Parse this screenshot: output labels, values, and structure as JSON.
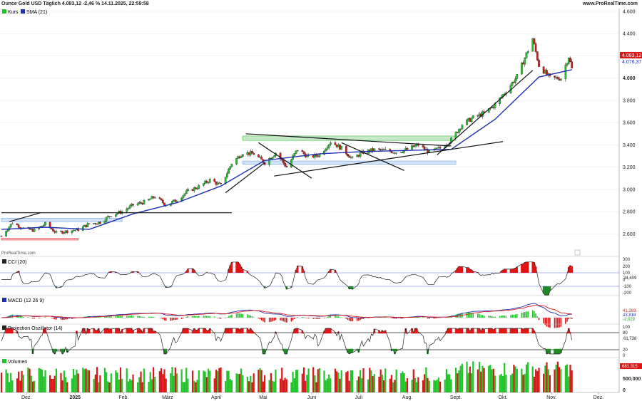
{
  "header": {
    "title": "Ounce Gold USD Täglich 4.083,12 -2,46 % 14.11.2025, 22:59:58",
    "brand": "www.ProRealTime.com"
  },
  "watermark": "ProRealTime.com",
  "colors": {
    "up": "#22c32b",
    "down": "#d81818",
    "sma": "#1f2fb3",
    "cci_fill_pos": "#e01515",
    "cci_fill_neg": "#1f8a25"
  },
  "panels": {
    "price": {
      "legend": [
        "Kurs",
        "SMA (21)"
      ],
      "last_price_label": "4.083,12",
      "sma_label": "4.076,37",
      "bold_tick": "4.000"
    },
    "cci": {
      "legend": "CCI (20)",
      "value_label": "34,409",
      "ticks": [
        "300",
        "200",
        "100",
        "0",
        "-100",
        "-200"
      ]
    },
    "macd": {
      "legend": "MACD (12 26 9)",
      "value_labels": [
        "41,283",
        "43,818",
        "-2,029"
      ]
    },
    "projection": {
      "legend": "Projection Oszillator (14)",
      "value_label": "61,738",
      "ticks": [
        "100",
        "80",
        "20",
        "0"
      ]
    },
    "volume": {
      "legend": "Volumen",
      "value_label": "681.315",
      "ticks": [
        "500.000",
        "0"
      ]
    }
  },
  "chart_data": {
    "type": "candlestick",
    "title": "Ounce Gold USD Täglich",
    "y_ticks": [
      "4.600",
      "4.400",
      "4.200",
      "4.000",
      "3.800",
      "3.600",
      "3.400",
      "3.200",
      "3.000",
      "2.800",
      "2.600"
    ],
    "ylim": [
      2500,
      4600
    ],
    "x_labels": [
      "Dez.",
      "2025",
      "Feb.",
      "März",
      "April",
      "Mai",
      "Juni",
      "Juli",
      "Aug.",
      "Sept.",
      "Okt.",
      "Nov.",
      "Dez."
    ],
    "close_path": [
      {
        "date": "2024-11-15",
        "close": 2580
      },
      {
        "date": "2024-11-22",
        "close": 2700
      },
      {
        "date": "2024-11-29",
        "close": 2650
      },
      {
        "date": "2024-12-06",
        "close": 2630
      },
      {
        "date": "2024-12-13",
        "close": 2690
      },
      {
        "date": "2024-12-20",
        "close": 2610
      },
      {
        "date": "2024-12-27",
        "close": 2625
      },
      {
        "date": "2025-01-03",
        "close": 2640
      },
      {
        "date": "2025-01-10",
        "close": 2690
      },
      {
        "date": "2025-01-17",
        "close": 2705
      },
      {
        "date": "2025-01-24",
        "close": 2770
      },
      {
        "date": "2025-01-31",
        "close": 2800
      },
      {
        "date": "2025-02-07",
        "close": 2860
      },
      {
        "date": "2025-02-14",
        "close": 2885
      },
      {
        "date": "2025-02-21",
        "close": 2935
      },
      {
        "date": "2025-02-28",
        "close": 2860
      },
      {
        "date": "2025-03-07",
        "close": 2905
      },
      {
        "date": "2025-03-14",
        "close": 2985
      },
      {
        "date": "2025-03-21",
        "close": 3025
      },
      {
        "date": "2025-03-28",
        "close": 3085
      },
      {
        "date": "2025-04-04",
        "close": 3035
      },
      {
        "date": "2025-04-11",
        "close": 3235
      },
      {
        "date": "2025-04-18",
        "close": 3330
      },
      {
        "date": "2025-04-25",
        "close": 3320
      },
      {
        "date": "2025-05-02",
        "close": 3240
      },
      {
        "date": "2025-05-09",
        "close": 3330
      },
      {
        "date": "2025-05-16",
        "close": 3200
      },
      {
        "date": "2025-05-23",
        "close": 3360
      },
      {
        "date": "2025-05-30",
        "close": 3290
      },
      {
        "date": "2025-06-06",
        "close": 3310
      },
      {
        "date": "2025-06-13",
        "close": 3430
      },
      {
        "date": "2025-06-20",
        "close": 3370
      },
      {
        "date": "2025-06-27",
        "close": 3275
      },
      {
        "date": "2025-07-04",
        "close": 3335
      },
      {
        "date": "2025-07-11",
        "close": 3355
      },
      {
        "date": "2025-07-18",
        "close": 3350
      },
      {
        "date": "2025-07-25",
        "close": 3335
      },
      {
        "date": "2025-08-01",
        "close": 3360
      },
      {
        "date": "2025-08-08",
        "close": 3400
      },
      {
        "date": "2025-08-15",
        "close": 3335
      },
      {
        "date": "2025-08-22",
        "close": 3370
      },
      {
        "date": "2025-08-29",
        "close": 3445
      },
      {
        "date": "2025-09-05",
        "close": 3585
      },
      {
        "date": "2025-09-12",
        "close": 3645
      },
      {
        "date": "2025-09-19",
        "close": 3685
      },
      {
        "date": "2025-09-26",
        "close": 3760
      },
      {
        "date": "2025-10-03",
        "close": 3885
      },
      {
        "date": "2025-10-10",
        "close": 4015
      },
      {
        "date": "2025-10-17",
        "close": 4250
      },
      {
        "date": "2025-10-20",
        "close": 4355
      },
      {
        "date": "2025-10-24",
        "close": 4115
      },
      {
        "date": "2025-10-31",
        "close": 4000
      },
      {
        "date": "2025-11-07",
        "close": 4000
      },
      {
        "date": "2025-11-12",
        "close": 4195
      },
      {
        "date": "2025-11-14",
        "close": 4083.12
      }
    ],
    "sma_path": [
      {
        "date": "2024-11-15",
        "value": 2640
      },
      {
        "date": "2024-12-13",
        "value": 2660
      },
      {
        "date": "2025-01-10",
        "value": 2640
      },
      {
        "date": "2025-02-07",
        "value": 2780
      },
      {
        "date": "2025-03-07",
        "value": 2880
      },
      {
        "date": "2025-04-04",
        "value": 3030
      },
      {
        "date": "2025-05-02",
        "value": 3260
      },
      {
        "date": "2025-06-06",
        "value": 3320
      },
      {
        "date": "2025-07-04",
        "value": 3340
      },
      {
        "date": "2025-08-01",
        "value": 3350
      },
      {
        "date": "2025-08-29",
        "value": 3360
      },
      {
        "date": "2025-09-26",
        "value": 3630
      },
      {
        "date": "2025-10-24",
        "value": 4010
      },
      {
        "date": "2025-11-14",
        "value": 4076.37
      }
    ],
    "annotations": {
      "horizontal_line": {
        "value": 2790,
        "from": "2024-11-15",
        "to": "2025-04-11"
      },
      "trendlines": [
        {
          "from": {
            "date": "2024-11-20",
            "value": 2710
          },
          "to": {
            "date": "2024-12-10",
            "value": 2790
          }
        },
        {
          "from": {
            "date": "2025-04-07",
            "value": 2970
          },
          "to": {
            "date": "2025-05-02",
            "value": 3240
          }
        },
        {
          "from": {
            "date": "2025-04-20",
            "value": 3500
          },
          "to": {
            "date": "2025-08-29",
            "value": 3390
          }
        },
        {
          "from": {
            "date": "2025-04-28",
            "value": 3420
          },
          "to": {
            "date": "2025-06-01",
            "value": 3100
          }
        },
        {
          "from": {
            "date": "2025-05-08",
            "value": 3120
          },
          "to": {
            "date": "2025-10-01",
            "value": 3430
          }
        },
        {
          "from": {
            "date": "2025-06-20",
            "value": 3420
          },
          "to": {
            "date": "2025-07-30",
            "value": 3170
          }
        },
        {
          "from": {
            "date": "2025-08-20",
            "value": 3310
          },
          "to": {
            "date": "2025-10-20",
            "value": 4070
          }
        }
      ],
      "zones": [
        {
          "from": "2024-11-15",
          "to": "2025-01-31",
          "low": 2710,
          "high": 2740,
          "color": "#7fb0e8"
        },
        {
          "from": "2024-11-15",
          "to": "2025-01-03",
          "low": 2545,
          "high": 2560,
          "color": "#e84a4a"
        },
        {
          "from": "2025-04-18",
          "to": "2025-09-01",
          "low": 3440,
          "high": 3480,
          "color": "#5cc25c"
        },
        {
          "from": "2025-04-18",
          "to": "2025-09-01",
          "low": 3225,
          "high": 3255,
          "color": "#7fb0e8"
        }
      ]
    }
  }
}
